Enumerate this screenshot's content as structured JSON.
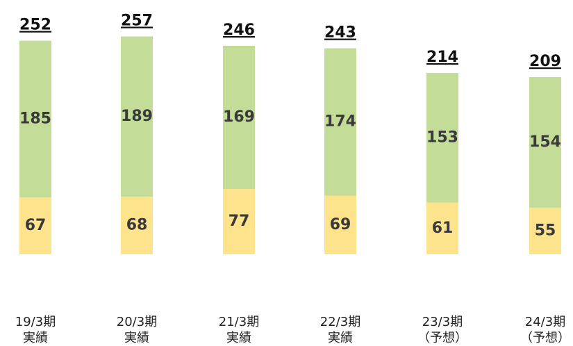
{
  "chart_data": {
    "type": "stacked_bar",
    "categories": [
      "19/3期",
      "20/3期",
      "21/3期",
      "22/3期",
      "23/3期",
      "24/3期"
    ],
    "category_notes": [
      "実績",
      "実績",
      "実績",
      "実績",
      "（予想）",
      "（予想）"
    ],
    "series": [
      {
        "color": "#fde38c",
        "values": [
          67,
          68,
          77,
          69,
          61,
          55
        ]
      },
      {
        "color": "#c3dc97",
        "values": [
          185,
          189,
          169,
          174,
          153,
          154
        ]
      }
    ],
    "totals": [
      252,
      257,
      246,
      243,
      214,
      209
    ]
  }
}
